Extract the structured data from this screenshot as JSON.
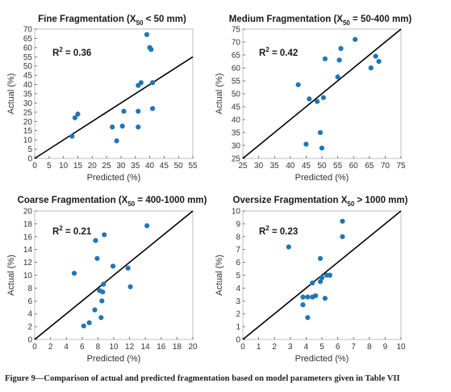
{
  "caption": "Figure 9—Comparison of actual and predicted fragmentation based on model parameters given in Table VII",
  "marker_color": "#1f77b4",
  "line_color": "#000000",
  "chart_data": [
    {
      "type": "scatter",
      "title": "Fine Fragmentation (X50 < 50 mm)",
      "title_parts": [
        "Fine Fragmentation (X",
        "50",
        " < 50 mm)"
      ],
      "xlabel": "Predicted (%)",
      "ylabel": "Actual (%)",
      "xlim": [
        0,
        55
      ],
      "ylim": [
        0,
        70
      ],
      "xticks": [
        0,
        5,
        10,
        15,
        20,
        25,
        30,
        35,
        40,
        45,
        50,
        55
      ],
      "yticks": [
        0,
        5,
        10,
        15,
        20,
        25,
        30,
        35,
        40,
        45,
        50,
        55,
        60,
        65,
        70
      ],
      "annotation": "R2 = 0.36",
      "annotation_parts": [
        "R",
        "2",
        " = 0.36"
      ],
      "reference_line": "y = x",
      "points": [
        {
          "x": 13,
          "y": 12
        },
        {
          "x": 14,
          "y": 22
        },
        {
          "x": 15,
          "y": 24
        },
        {
          "x": 27,
          "y": 17
        },
        {
          "x": 28.5,
          "y": 9.5
        },
        {
          "x": 30.5,
          "y": 17.5
        },
        {
          "x": 31,
          "y": 25.5
        },
        {
          "x": 36,
          "y": 17
        },
        {
          "x": 36,
          "y": 25.5
        },
        {
          "x": 36,
          "y": 39.5
        },
        {
          "x": 37,
          "y": 41
        },
        {
          "x": 39,
          "y": 67
        },
        {
          "x": 40,
          "y": 60
        },
        {
          "x": 40.5,
          "y": 59
        },
        {
          "x": 41,
          "y": 27
        },
        {
          "x": 41,
          "y": 41
        }
      ]
    },
    {
      "type": "scatter",
      "title": "Medium Fragmentation (X50 = 50-400 mm)",
      "title_parts": [
        "Medium Fragmentation (X",
        "50",
        " = 50-400 mm)"
      ],
      "xlabel": "Predicted (%)",
      "ylabel": "Actual (%)",
      "xlim": [
        25,
        75
      ],
      "ylim": [
        25,
        75
      ],
      "xticks": [
        25,
        30,
        35,
        40,
        45,
        50,
        55,
        60,
        65,
        70,
        75
      ],
      "yticks": [
        25,
        30,
        35,
        40,
        45,
        50,
        55,
        60,
        65,
        70,
        75
      ],
      "annotation": "R2 = 0.42",
      "annotation_parts": [
        "R",
        "2",
        " = 0.42"
      ],
      "reference_line": "y = x",
      "points": [
        {
          "x": 42.5,
          "y": 53.5
        },
        {
          "x": 45,
          "y": 30.5
        },
        {
          "x": 46,
          "y": 48
        },
        {
          "x": 48.5,
          "y": 47
        },
        {
          "x": 49.5,
          "y": 35
        },
        {
          "x": 50,
          "y": 29
        },
        {
          "x": 50.5,
          "y": 48.5
        },
        {
          "x": 51,
          "y": 63.5
        },
        {
          "x": 55,
          "y": 56.5
        },
        {
          "x": 55.5,
          "y": 63
        },
        {
          "x": 56,
          "y": 67.5
        },
        {
          "x": 60.5,
          "y": 71
        },
        {
          "x": 65.5,
          "y": 60
        },
        {
          "x": 67,
          "y": 64.5
        },
        {
          "x": 68,
          "y": 62.5
        }
      ]
    },
    {
      "type": "scatter",
      "title": "Coarse Fragmentation (X50 = 400-1000 mm)",
      "title_parts": [
        "Coarse Fragmentation (X",
        "50",
        " = 400-1000 mm)"
      ],
      "xlabel": "Predicted (%)",
      "ylabel": "Actual (%)",
      "xlim": [
        0,
        20
      ],
      "ylim": [
        0,
        20
      ],
      "xticks": [
        0,
        2,
        4,
        6,
        8,
        10,
        12,
        14,
        16,
        18,
        20
      ],
      "yticks": [
        0,
        2,
        4,
        6,
        8,
        10,
        12,
        14,
        16,
        18,
        20
      ],
      "annotation": "R2 = 0.21",
      "annotation_parts": [
        "R",
        "2",
        " = 0.21"
      ],
      "reference_line": "y = x",
      "points": [
        {
          "x": 5,
          "y": 10.3
        },
        {
          "x": 6.2,
          "y": 2.1
        },
        {
          "x": 6.9,
          "y": 2.6
        },
        {
          "x": 7.6,
          "y": 4.6
        },
        {
          "x": 7.7,
          "y": 15.4
        },
        {
          "x": 7.9,
          "y": 12.6
        },
        {
          "x": 8.2,
          "y": 7.6
        },
        {
          "x": 8.4,
          "y": 3.4
        },
        {
          "x": 8.5,
          "y": 6
        },
        {
          "x": 8.6,
          "y": 7.4
        },
        {
          "x": 8.7,
          "y": 8.6
        },
        {
          "x": 8.8,
          "y": 16.3
        },
        {
          "x": 9.9,
          "y": 11.4
        },
        {
          "x": 11.8,
          "y": 11.1
        },
        {
          "x": 12.1,
          "y": 8.2
        },
        {
          "x": 14.2,
          "y": 17.7
        }
      ]
    },
    {
      "type": "scatter",
      "title": "Oversize Fragmentation X50 > 1000 mm)",
      "title_parts": [
        "Oversize Fragmentation X",
        "50",
        " > 1000 mm)"
      ],
      "xlabel": "Predicted (%)",
      "ylabel": "Actual (%)",
      "xlim": [
        0,
        10
      ],
      "ylim": [
        0,
        10
      ],
      "xticks": [
        0,
        1,
        2,
        3,
        4,
        5,
        6,
        7,
        8,
        9,
        10
      ],
      "yticks": [
        0,
        1,
        2,
        3,
        4,
        5,
        6,
        7,
        8,
        9,
        10
      ],
      "annotation": "R2 = 0.23",
      "annotation_parts": [
        "R",
        "2",
        " = 0.23"
      ],
      "reference_line": "y = x",
      "points": [
        {
          "x": 2.9,
          "y": 7.2
        },
        {
          "x": 3.8,
          "y": 3.3
        },
        {
          "x": 3.8,
          "y": 2.7
        },
        {
          "x": 4.1,
          "y": 3.3
        },
        {
          "x": 4.1,
          "y": 1.7
        },
        {
          "x": 4.4,
          "y": 3.3
        },
        {
          "x": 4.4,
          "y": 4.4
        },
        {
          "x": 4.6,
          "y": 3.4
        },
        {
          "x": 4.9,
          "y": 6.3
        },
        {
          "x": 4.9,
          "y": 4.5
        },
        {
          "x": 5,
          "y": 4.8
        },
        {
          "x": 5.2,
          "y": 3.2
        },
        {
          "x": 5.3,
          "y": 5
        },
        {
          "x": 5.5,
          "y": 5
        },
        {
          "x": 6.3,
          "y": 9.2
        },
        {
          "x": 6.3,
          "y": 8
        }
      ]
    }
  ]
}
